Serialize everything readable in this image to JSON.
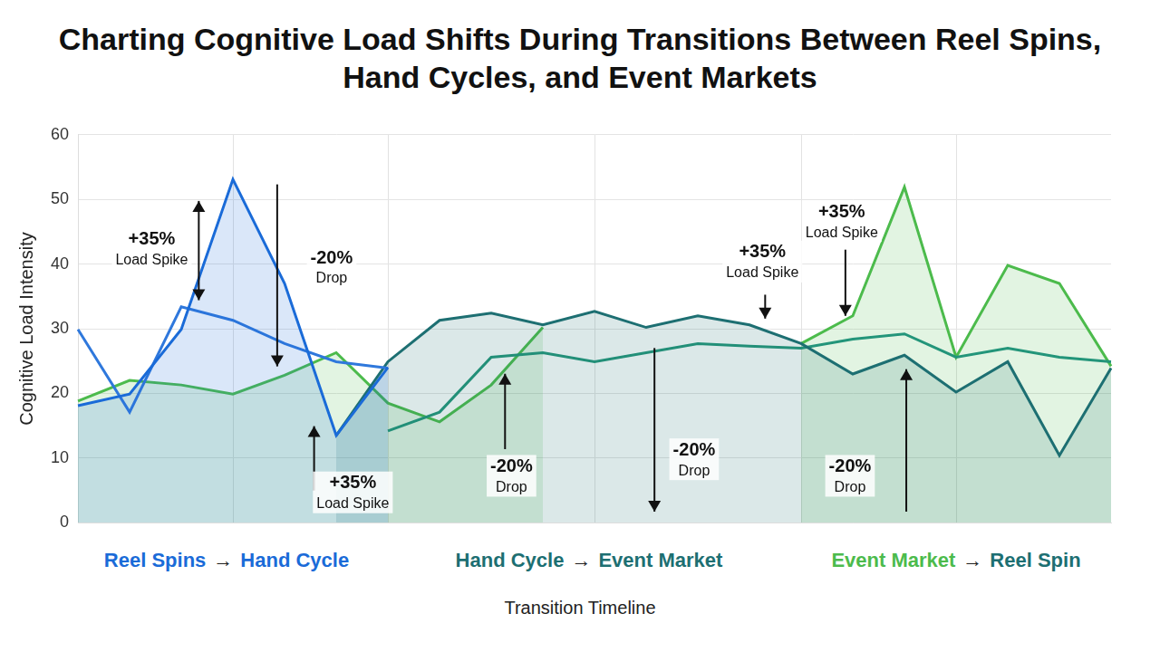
{
  "chart_data": {
    "type": "line",
    "title": "Charting Cognitive Load Shifts During Transitions Between Reel Spins, Hand Cycles, and Event Markets",
    "x_label": "Transition Timeline",
    "y_label": "Cognitive Load Intensity",
    "categories": [
      null,
      null,
      null,
      null,
      null,
      null,
      null,
      null,
      null,
      null,
      null,
      null,
      null,
      null,
      null,
      null,
      null,
      null,
      null,
      null,
      null
    ],
    "series": [
      {
        "color": "#1a6bd8",
        "values": [
          18.1,
          19.9,
          29.9,
          53.1,
          37.0,
          13.5,
          24.0,
          null,
          null,
          null,
          null,
          null,
          null,
          null,
          null,
          null,
          null,
          null,
          null,
          null,
          null
        ]
      },
      {
        "color": "#2f78dc",
        "values": [
          29.9,
          17.1,
          33.4,
          31.3,
          27.7,
          24.9,
          23.9,
          null,
          null,
          null,
          null,
          null,
          null,
          null,
          null,
          null,
          null,
          null,
          null,
          null,
          null
        ]
      },
      {
        "color": "#1d6f72",
        "values": [
          null,
          null,
          null,
          null,
          null,
          13.5,
          24.9,
          31.3,
          32.4,
          30.6,
          32.7,
          30.2,
          32.0,
          30.6,
          27.7,
          23.0,
          25.9,
          20.2,
          24.9,
          10.4,
          23.9
        ]
      },
      {
        "color": "#23957a",
        "values": [
          null,
          null,
          null,
          null,
          null,
          null,
          14.2,
          17.1,
          25.6,
          26.3,
          24.9,
          26.3,
          27.7,
          27.3,
          27.0,
          28.4,
          29.2,
          25.6,
          27.0,
          25.6,
          24.9
        ]
      },
      {
        "color": "#4cbb4c",
        "values": [
          18.8,
          22.0,
          21.3,
          19.9,
          22.8,
          26.3,
          18.5,
          15.6,
          21.3,
          30.2,
          null,
          null,
          null,
          null,
          27.7,
          32.0,
          51.9,
          25.6,
          39.8,
          37.0,
          24.2
        ]
      }
    ],
    "ylim": [
      0,
      60
    ],
    "yticks": [
      0,
      10,
      20,
      30,
      40,
      50,
      60
    ],
    "grid": true,
    "tick_labels": "y",
    "annotations": [
      {
        "text": "+35%",
        "note": "Load Spike"
      },
      {
        "text": "-20%",
        "note": "Drop"
      },
      {
        "text": "+35%",
        "note": "Load Spike"
      },
      {
        "text": "-20%",
        "note": "Drop"
      },
      {
        "text": "-20%",
        "note": "Drop"
      },
      {
        "text": "+35%",
        "note": "Load Spike"
      },
      {
        "text": "+35%",
        "note": "Load Spike"
      },
      {
        "text": "-20%",
        "note": "Drop"
      }
    ],
    "sections": [
      [
        "Reel Spins",
        "→",
        "Hand Cycle"
      ],
      [
        "Hand Cycle",
        "→",
        "Event Market"
      ],
      [
        "Event Market",
        "→",
        "Reel Spin"
      ]
    ]
  }
}
